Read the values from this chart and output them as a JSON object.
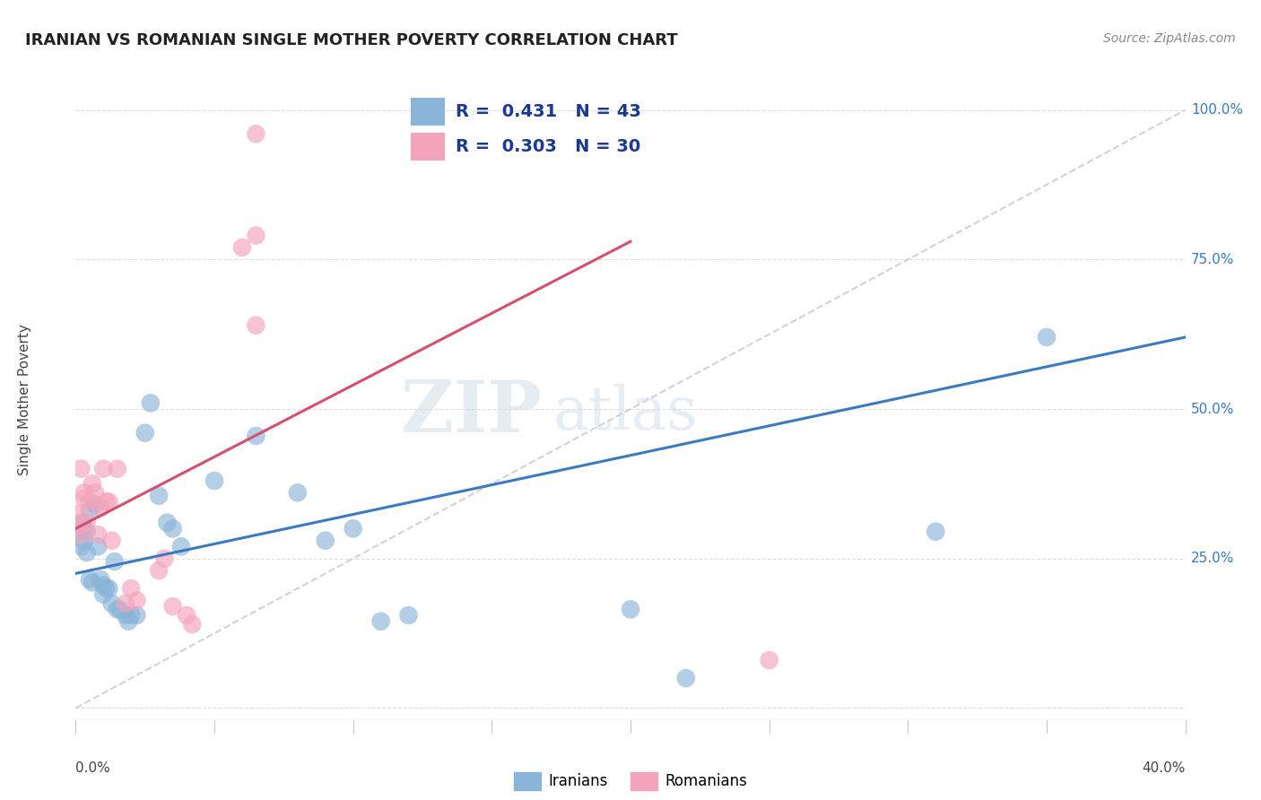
{
  "title": "IRANIAN VS ROMANIAN SINGLE MOTHER POVERTY CORRELATION CHART",
  "source": "Source: ZipAtlas.com",
  "ylabel": "Single Mother Poverty",
  "xmin": 0.0,
  "xmax": 0.4,
  "ymin": -0.02,
  "ymax": 1.05,
  "iranian_R": 0.431,
  "iranian_N": 43,
  "romanian_R": 0.303,
  "romanian_N": 30,
  "iranian_color": "#8ab4d8",
  "romanian_color": "#f4a4ba",
  "trend_iranian_color": "#3a7abf",
  "trend_romanian_color": "#d45070",
  "diagonal_color": "#c8c8c8",
  "watermark_zip": "ZIP",
  "watermark_atlas": "atlas",
  "background_color": "#ffffff",
  "grid_color": "#dddddd",
  "legend_text_color": "#1a3a8f",
  "iranian_x": [
    0.001,
    0.001,
    0.002,
    0.002,
    0.003,
    0.003,
    0.004,
    0.004,
    0.005,
    0.005,
    0.006,
    0.007,
    0.008,
    0.009,
    0.01,
    0.01,
    0.011,
    0.012,
    0.013,
    0.014,
    0.015,
    0.016,
    0.018,
    0.019,
    0.02,
    0.022,
    0.025,
    0.027,
    0.03,
    0.033,
    0.035,
    0.038,
    0.05,
    0.065,
    0.08,
    0.09,
    0.1,
    0.11,
    0.12,
    0.2,
    0.22,
    0.31,
    0.35
  ],
  "iranian_y": [
    0.295,
    0.305,
    0.27,
    0.31,
    0.3,
    0.28,
    0.295,
    0.26,
    0.33,
    0.215,
    0.21,
    0.34,
    0.27,
    0.215,
    0.205,
    0.19,
    0.2,
    0.2,
    0.175,
    0.245,
    0.165,
    0.165,
    0.155,
    0.145,
    0.155,
    0.155,
    0.46,
    0.51,
    0.355,
    0.31,
    0.3,
    0.27,
    0.38,
    0.455,
    0.36,
    0.28,
    0.3,
    0.145,
    0.155,
    0.165,
    0.05,
    0.295,
    0.62
  ],
  "romanian_x": [
    0.001,
    0.001,
    0.002,
    0.002,
    0.003,
    0.003,
    0.004,
    0.005,
    0.006,
    0.007,
    0.008,
    0.009,
    0.01,
    0.011,
    0.012,
    0.013,
    0.015,
    0.018,
    0.02,
    0.022,
    0.03,
    0.032,
    0.035,
    0.04,
    0.042,
    0.06,
    0.065,
    0.065,
    0.065,
    0.25
  ],
  "romanian_y": [
    0.305,
    0.325,
    0.29,
    0.4,
    0.36,
    0.35,
    0.31,
    0.345,
    0.375,
    0.36,
    0.29,
    0.335,
    0.4,
    0.345,
    0.345,
    0.28,
    0.4,
    0.175,
    0.2,
    0.18,
    0.23,
    0.25,
    0.17,
    0.155,
    0.14,
    0.77,
    0.79,
    0.64,
    0.96,
    0.08
  ],
  "trend_iranian_x0": 0.0,
  "trend_iranian_y0": 0.225,
  "trend_iranian_x1": 0.4,
  "trend_iranian_y1": 0.62,
  "trend_romanian_x0": 0.0,
  "trend_romanian_y0": 0.3,
  "trend_romanian_x1": 0.2,
  "trend_romanian_y1": 0.78
}
